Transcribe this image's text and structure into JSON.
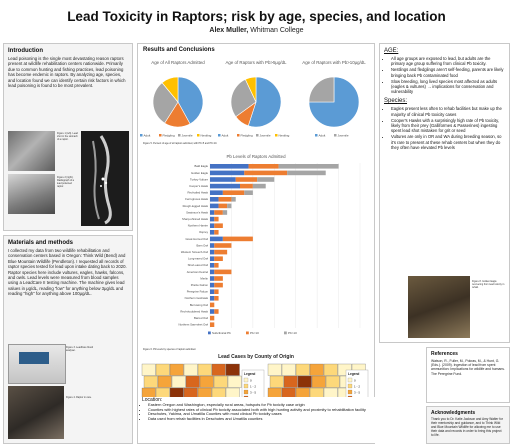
{
  "header": {
    "title": "Lead Toxicity in Raptors; risk by age, species, and location",
    "author": "Alex Muller,",
    "affiliation": "Whitman College"
  },
  "intro": {
    "heading": "Introduction",
    "text": "Lead poisoning is the single most devastating reason raptors present at wildlife rehabilitation centers nationwide. Primarily due to common hunting and fishing practices, lead poisoning has become endemic in raptors. By analyzing age, species, and location found we can identify certain risk factors in which lead poisoning is found to be most prevalent.",
    "fig1_caption": "Figure 1 (left). Lead shot in the stomach of a raptor.",
    "fig2_caption": "Figure 2 (right). Radiograph of a lead poisoned raptor."
  },
  "methods": {
    "heading": "Materials and methods",
    "text": "I collected my data from two wildlife rehabilitation and conservation centers based in Oregon: Think Wild (Bend) and Blue Mountain Wildlife (Pendleton). I requested all records of raptor species tested for lead upon intake dating back to 2020. Raptor species here include vultures, eagles, hawks, falcons, and owls. Lead levels were measured from blood samples using a LeadCare II testing machine. The machine gives lead values in μg/dL, reading \"low\" for anything below 3μg/dL and reading \"high\" for anything above 100μg/dL.",
    "fig3_caption": "Figure 3. LeadCare blood analyser.",
    "fig4_caption": "Figure 4. Raptor in care."
  },
  "results": {
    "heading": "Results and Conclusions",
    "pie_caption": "Figure 5. Percent of age of all raptors admitted, with Pb>5 and Pb>10.",
    "bar_caption": "Figure 6. Pb levels by species of raptors admitted.",
    "map_caption": "Figure 7. Raptor counts by county of origin."
  },
  "age": {
    "heading": "AGE:",
    "bullets": [
      "All age groups are exposed to lead, but adults are the primary age group suffering from clinical Pb toxicity.",
      "Nestlings and fledglings aren't self-feeding, parents are likely bringing back Pb contaminated food",
      "Slow breeding, long lived species most affected as adults (eagles & vultures) → implications for conservation and vulnerability"
    ]
  },
  "species": {
    "heading": "Species:",
    "bullets": [
      "Eagles present less often to rehab facilities but make up the majority of clinical Pb toxicity cases",
      "Cooper's Hawks with a surprisingly high rate of Pb toxicity, likely from their prey (Galliformes & Passerines) ingesting spent lead shot mistaken for grit or seed",
      "Vultures are only in OR and WA during breeding season, so it's rare to present at these rehab centers but when they do they often have elevated Pb levels"
    ]
  },
  "location": {
    "heading": "Location:",
    "bullets": [
      "Eastern Oregon and Washington, especially rural areas, hotspots for Pb toxicity case origin",
      "Counties with highest rates of clinical Pb toxicity associated both with high hunting activity and proximity to rehabilitation facility",
      "Deschutes, Yakima, and Umatilla Counties with most clinical Pb toxicity cases",
      "Data used from rehab facilities in Deschutes and Umatilla counties"
    ]
  },
  "references": {
    "heading": "References",
    "text": "Watson, R., Fuller, M., Pokras, M., & Hunt, G. (Eds.). (2009). Ingestion of lead from spent ammunition: Implications for wildlife and humans. The Peregrine Fund."
  },
  "ack": {
    "heading": "Acknowledgments",
    "text": "Thank you to Dr. Katie Jackson and Amy Walter for their mentorship and guidance, and to Think Wild and Blue Mountain Wildlife for allowing me to use their data and records in order to bring this project to life."
  },
  "fig5_caption": "Figure 8. Golden Eagle recovering from lead toxicity in rehab.",
  "chart_data": [
    {
      "type": "pie",
      "title": "Age of All Raptors Admitted",
      "categories": [
        "Adult",
        "Fledgling",
        "Juvenile",
        "Nestling"
      ],
      "values": [
        42,
        17,
        30,
        11
      ],
      "colors": [
        "#5b9bd5",
        "#ed7d31",
        "#a5a5a5",
        "#ffc000"
      ]
    },
    {
      "type": "pie",
      "title": "Age of Raptors with Pb>5μg/dL",
      "categories": [
        "Adult",
        "Fledgling",
        "Juvenile",
        "Nestling"
      ],
      "values": [
        55,
        10,
        28,
        7
      ],
      "colors": [
        "#5b9bd5",
        "#ed7d31",
        "#a5a5a5",
        "#ffc000"
      ]
    },
    {
      "type": "pie",
      "title": "Age of Raptors with Pb>10μg/dL",
      "categories": [
        "Adult",
        "Juvenile"
      ],
      "values": [
        75,
        25
      ],
      "colors": [
        "#5b9bd5",
        "#a5a5a5"
      ]
    },
    {
      "type": "bar",
      "title": "Pb Levels of Raptors Admitted",
      "categories": [
        "Bald Eagle",
        "Golden Eagle",
        "Turkey Vulture",
        "Cooper's Hawk",
        "Red-tailed Hawk",
        "Ferruginous Hawk",
        "Rough-legged Hawk",
        "Swainson's Hawk",
        "Sharp-shinned Hawk",
        "Northern Harrier",
        "Osprey",
        "Great Horned Owl",
        "Barn Owl",
        "Western Screech-Owl",
        "Long-eared Owl",
        "Short-eared Owl",
        "American Kestrel",
        "Merlin",
        "Prairie Falcon",
        "Peregrine Falcon",
        "Northern Goshawk",
        "Burrowing Owl",
        "Red-shouldered Hawk",
        "Barred Owl",
        "Northern Saw-whet Owl"
      ],
      "series": [
        {
          "name": "Subclinical Pb",
          "values": [
            9,
            8,
            6,
            7,
            3,
            2,
            2,
            1,
            1,
            1,
            1,
            3,
            1,
            1,
            1,
            1,
            1,
            1,
            1,
            1,
            1,
            0,
            1,
            0,
            0
          ]
        },
        {
          "name": "Pb<10",
          "values": [
            7,
            10,
            5,
            3,
            5,
            3,
            2,
            2,
            1,
            2,
            1,
            7,
            4,
            3,
            2,
            1,
            4,
            2,
            2,
            1,
            1,
            1,
            1,
            1,
            1
          ]
        },
        {
          "name": "Pb>10",
          "values": [
            14,
            9,
            4,
            3,
            2,
            1,
            1,
            1,
            0,
            0,
            0,
            0,
            0,
            0,
            0,
            0,
            0,
            0,
            0,
            0,
            0,
            0,
            0,
            0,
            0
          ]
        }
      ],
      "colors": [
        "#4472c4",
        "#ed7d31",
        "#a5a5a5"
      ]
    }
  ],
  "map": {
    "title": "Lead Cases by County of Origin",
    "legend_title": "Legend",
    "legend_items": [
      "0",
      "1 - 2",
      "3 - 5",
      "6 - 10",
      "11 - 20"
    ],
    "colors": [
      "#fff5c8",
      "#fdd87a",
      "#f5a43a",
      "#d8661e",
      "#8c3208"
    ]
  }
}
